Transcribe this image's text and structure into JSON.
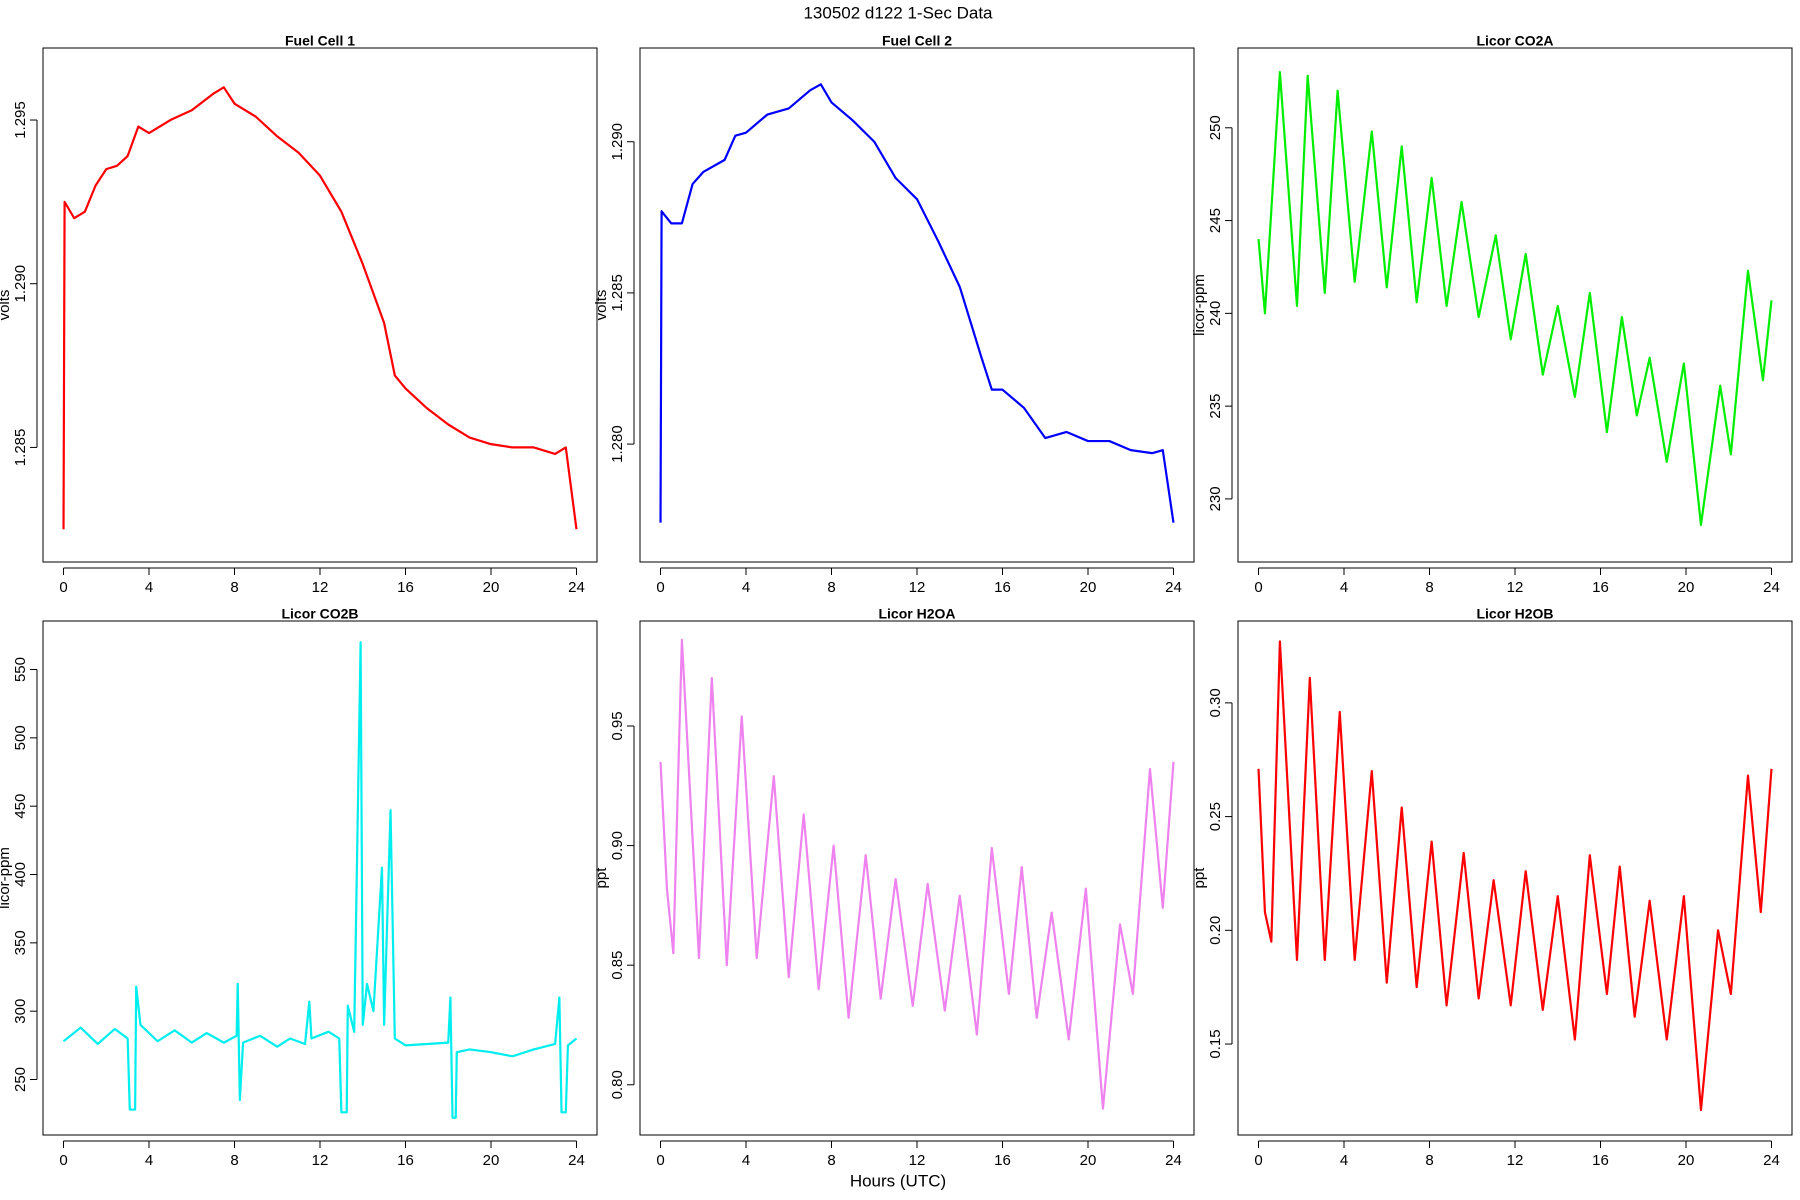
{
  "title": "130502   d122   1-Sec Data",
  "xlabel": "Hours (UTC)",
  "chart_data": [
    {
      "type": "line",
      "title": "Fuel Cell 1",
      "ylabel": "volts",
      "x": [
        0,
        0.05,
        0.5,
        1,
        1.5,
        2,
        2.5,
        3,
        3.5,
        4,
        5,
        6,
        7,
        7.5,
        8,
        9,
        10,
        11,
        12,
        13,
        14,
        15,
        15.5,
        16,
        17,
        18,
        19,
        20,
        21,
        22,
        23,
        23.5,
        24
      ],
      "series": [
        {
          "color": "#ff0000",
          "values": [
            1.2825,
            1.2925,
            1.292,
            1.2922,
            1.293,
            1.2935,
            1.2936,
            1.2939,
            1.2948,
            1.2946,
            1.295,
            1.2953,
            1.2958,
            1.296,
            1.2955,
            1.2951,
            1.2945,
            1.294,
            1.2933,
            1.2922,
            1.2906,
            1.2888,
            1.2872,
            1.2868,
            1.2862,
            1.2857,
            1.2853,
            1.2851,
            1.285,
            1.285,
            1.2848,
            1.285,
            1.2825
          ]
        }
      ],
      "xlim": [
        -0.96,
        24.96
      ],
      "xticks": [
        0,
        4,
        8,
        12,
        16,
        20,
        24
      ],
      "ylim": [
        1.2815,
        1.2972
      ],
      "yticks": [
        1.285,
        {
          "value": 1.29,
          "label": "1.290"
        },
        1.295
      ]
    },
    {
      "type": "line",
      "title": "Fuel Cell 2",
      "ylabel": "volts",
      "x": [
        0,
        0.05,
        0.5,
        1,
        1.5,
        2,
        3,
        3.5,
        4,
        5,
        6,
        7,
        7.5,
        8,
        9,
        10,
        11,
        12,
        13,
        14,
        15,
        15.5,
        16,
        17,
        18,
        19,
        20,
        21,
        22,
        23,
        23.5,
        24
      ],
      "series": [
        {
          "color": "#0000ff",
          "values": [
            1.2774,
            1.2877,
            1.2873,
            1.2873,
            1.2886,
            1.289,
            1.2894,
            1.2902,
            1.2903,
            1.2909,
            1.2911,
            1.2917,
            1.2919,
            1.2913,
            1.2907,
            1.29,
            1.2888,
            1.2881,
            1.2867,
            1.2852,
            1.2829,
            1.2818,
            1.2818,
            1.2812,
            1.2802,
            1.2804,
            1.2801,
            1.2801,
            1.2798,
            1.2797,
            1.2798,
            1.2774
          ]
        }
      ],
      "xlim": [
        -0.96,
        24.96
      ],
      "xticks": [
        0,
        4,
        8,
        12,
        16,
        20,
        24
      ],
      "ylim": [
        1.2761,
        1.2931
      ],
      "yticks": [
        {
          "value": 1.28,
          "label": "1.280"
        },
        1.285,
        {
          "value": 1.29,
          "label": "1.290"
        }
      ]
    },
    {
      "type": "line",
      "title": "Licor CO2A",
      "ylabel": "licor-ppm",
      "x": [
        0,
        0.3,
        1.0,
        1.8,
        2.3,
        3.1,
        3.7,
        4.5,
        5.3,
        6.0,
        6.7,
        7.4,
        8.1,
        8.8,
        9.5,
        10.3,
        11.1,
        11.8,
        12.5,
        13.3,
        14.0,
        14.8,
        15.5,
        16.3,
        17.0,
        17.7,
        18.3,
        19.1,
        19.9,
        20.7,
        21.6,
        22.1,
        22.9,
        23.6,
        24.0
      ],
      "series": [
        {
          "color": "#00ee00",
          "values": [
            244.0,
            240.0,
            253.0,
            240.4,
            252.8,
            241.1,
            252.0,
            241.7,
            249.8,
            241.4,
            249.0,
            240.6,
            247.3,
            240.4,
            246.0,
            239.8,
            244.2,
            238.6,
            243.2,
            236.7,
            240.4,
            235.5,
            241.1,
            233.6,
            239.8,
            234.5,
            237.6,
            232.0,
            237.3,
            228.6,
            236.1,
            232.4,
            242.3,
            236.4,
            240.7
          ]
        }
      ],
      "xlim": [
        -0.96,
        24.96
      ],
      "xticks": [
        0,
        4,
        8,
        12,
        16,
        20,
        24
      ],
      "ylim": [
        226.6,
        254.3
      ],
      "yticks": [
        230,
        235,
        240,
        245,
        250
      ]
    },
    {
      "type": "line",
      "title": "Licor CO2B",
      "ylabel": "licor-ppm",
      "x": [
        0,
        0.8,
        1.6,
        2.4,
        3.0,
        3.1,
        3.35,
        3.4,
        3.6,
        4.4,
        5.2,
        6.0,
        6.7,
        7.5,
        8.1,
        8.15,
        8.25,
        8.4,
        9.2,
        10.0,
        10.6,
        11.3,
        11.5,
        11.6,
        12.4,
        12.9,
        13.0,
        13.25,
        13.3,
        13.6,
        13.9,
        14.0,
        14.2,
        14.5,
        14.9,
        15.0,
        15.3,
        15.5,
        16.0,
        17.0,
        18.0,
        18.1,
        18.2,
        18.35,
        18.4,
        19.0,
        20.0,
        21.0,
        22.0,
        23.0,
        23.2,
        23.3,
        23.5,
        23.6,
        24.0
      ],
      "series": [
        {
          "color": "#00eeee",
          "values": [
            278,
            288,
            276,
            287,
            280,
            228,
            228,
            318,
            290,
            278,
            286,
            277,
            284,
            277,
            282,
            320,
            235,
            277,
            282,
            274,
            280,
            276,
            307,
            280,
            285,
            280,
            226,
            226,
            304,
            285,
            570,
            290,
            320,
            300,
            405,
            290,
            447,
            280,
            275,
            276,
            277,
            310,
            222,
            222,
            270,
            272,
            270,
            267,
            272,
            276,
            310,
            226,
            226,
            275,
            280
          ]
        }
      ],
      "xlim": [
        -0.96,
        24.96
      ],
      "xticks": [
        0,
        4,
        8,
        12,
        16,
        20,
        24
      ],
      "ylim": [
        209.4,
        585.5
      ],
      "yticks": [
        250,
        300,
        350,
        400,
        450,
        500,
        550
      ]
    },
    {
      "type": "line",
      "title": "Licor H2OA",
      "ylabel": "ppt",
      "x": [
        0,
        0.3,
        0.6,
        1.0,
        1.8,
        2.4,
        3.1,
        3.8,
        4.5,
        5.3,
        6.0,
        6.7,
        7.4,
        8.1,
        8.8,
        9.6,
        10.3,
        11.0,
        11.8,
        12.5,
        13.3,
        14.0,
        14.8,
        15.5,
        16.3,
        16.9,
        17.6,
        18.3,
        19.1,
        19.9,
        20.7,
        21.5,
        22.1,
        22.9,
        23.5,
        24.0
      ],
      "series": [
        {
          "color": "#ee82ee",
          "values": [
            0.935,
            0.882,
            0.855,
            0.986,
            0.853,
            0.97,
            0.85,
            0.954,
            0.853,
            0.929,
            0.845,
            0.913,
            0.84,
            0.9,
            0.828,
            0.896,
            0.836,
            0.886,
            0.833,
            0.884,
            0.831,
            0.879,
            0.821,
            0.899,
            0.838,
            0.891,
            0.828,
            0.872,
            0.819,
            0.882,
            0.79,
            0.867,
            0.838,
            0.932,
            0.874,
            0.935
          ]
        }
      ],
      "xlim": [
        -0.96,
        24.96
      ],
      "xticks": [
        0,
        4,
        8,
        12,
        16,
        20,
        24
      ],
      "ylim": [
        0.779,
        0.9939
      ],
      "yticks": [
        {
          "value": 0.8,
          "label": "0.80"
        },
        0.85,
        {
          "value": 0.9,
          "label": "0.90"
        },
        0.95
      ]
    },
    {
      "type": "line",
      "title": "Licor H2OB",
      "ylabel": "ppt",
      "x": [
        0,
        0.3,
        0.6,
        1.0,
        1.8,
        2.4,
        3.1,
        3.8,
        4.5,
        5.3,
        6.0,
        6.7,
        7.4,
        8.1,
        8.8,
        9.6,
        10.3,
        11.0,
        11.8,
        12.5,
        13.3,
        14.0,
        14.8,
        15.5,
        16.3,
        16.9,
        17.6,
        18.3,
        19.1,
        19.9,
        20.7,
        21.5,
        22.1,
        22.9,
        23.5,
        24.0
      ],
      "series": [
        {
          "color": "#ff0000",
          "values": [
            0.271,
            0.208,
            0.195,
            0.327,
            0.187,
            0.311,
            0.187,
            0.296,
            0.187,
            0.27,
            0.177,
            0.254,
            0.175,
            0.239,
            0.167,
            0.234,
            0.17,
            0.222,
            0.167,
            0.226,
            0.165,
            0.215,
            0.152,
            0.233,
            0.172,
            0.228,
            0.162,
            0.213,
            0.152,
            0.215,
            0.121,
            0.2,
            0.172,
            0.268,
            0.208,
            0.271
          ]
        }
      ],
      "xlim": [
        -0.96,
        24.96
      ],
      "xticks": [
        0,
        4,
        8,
        12,
        16,
        20,
        24
      ],
      "ylim": [
        0.11,
        0.336
      ],
      "yticks": [
        0.15,
        {
          "value": 0.2,
          "label": "0.20"
        },
        0.25,
        {
          "value": 0.3,
          "label": "0.30"
        }
      ]
    }
  ]
}
